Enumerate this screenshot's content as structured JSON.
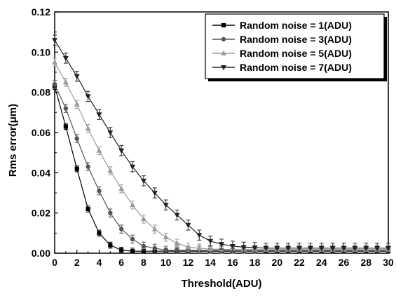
{
  "chart_data": {
    "type": "line",
    "title": "",
    "xlabel": "Threshold(ADU)",
    "ylabel": "Rms error(μm)",
    "xlim": [
      0,
      30
    ],
    "ylim": [
      0,
      0.12
    ],
    "x_ticks": [
      0,
      2,
      4,
      6,
      8,
      10,
      12,
      14,
      16,
      18,
      20,
      22,
      24,
      26,
      28,
      30
    ],
    "y_ticks": [
      "0.00",
      "0.02",
      "0.04",
      "0.06",
      "0.08",
      "0.10",
      "0.12"
    ],
    "grid": false,
    "legend_position": "top-right",
    "x": [
      0,
      1,
      2,
      3,
      4,
      5,
      6,
      7,
      8,
      9,
      10,
      11,
      12,
      13,
      14,
      15,
      16,
      17,
      18,
      19,
      20,
      21,
      22,
      23,
      24,
      25,
      26,
      27,
      28,
      29,
      30
    ],
    "series": [
      {
        "name": "Random noise = 1(ADU)",
        "color": "#000000",
        "marker": "square",
        "values": [
          0.083,
          0.063,
          0.042,
          0.022,
          0.01,
          0.004,
          0.0015,
          0.001,
          0.001,
          0.001,
          0.001,
          0.001,
          0.001,
          0.001,
          0.001,
          0.001,
          0.001,
          0.001,
          0.001,
          0.001,
          0.001,
          0.001,
          0.001,
          0.001,
          0.001,
          0.001,
          0.001,
          0.001,
          0.001,
          0.001,
          0.001
        ],
        "error": 0.0015
      },
      {
        "name": "Random noise = 3(ADU)",
        "color": "#555555",
        "marker": "circle",
        "values": [
          0.084,
          0.072,
          0.057,
          0.043,
          0.031,
          0.02,
          0.012,
          0.007,
          0.0035,
          0.0025,
          0.0015,
          0.0015,
          0.0015,
          0.0015,
          0.0015,
          0.0015,
          0.0015,
          0.0015,
          0.0015,
          0.0015,
          0.0015,
          0.0015,
          0.0015,
          0.0015,
          0.0015,
          0.0015,
          0.0015,
          0.0015,
          0.0015,
          0.0015,
          0.0015
        ],
        "error": 0.002
      },
      {
        "name": "Random noise = 5(ADU)",
        "color": "#9a9a9a",
        "marker": "triangle-up",
        "values": [
          0.095,
          0.085,
          0.074,
          0.062,
          0.051,
          0.041,
          0.032,
          0.024,
          0.017,
          0.012,
          0.008,
          0.005,
          0.003,
          0.0025,
          0.002,
          0.002,
          0.0018,
          0.0018,
          0.0018,
          0.0018,
          0.0018,
          0.0018,
          0.0018,
          0.0018,
          0.0018,
          0.0018,
          0.0018,
          0.0018,
          0.0018,
          0.0018,
          0.0018
        ],
        "error": 0.002
      },
      {
        "name": "Random noise = 7(ADU)",
        "color": "#222222",
        "marker": "triangle-down",
        "values": [
          0.106,
          0.097,
          0.088,
          0.078,
          0.069,
          0.06,
          0.051,
          0.043,
          0.036,
          0.03,
          0.024,
          0.019,
          0.014,
          0.009,
          0.006,
          0.0045,
          0.0035,
          0.003,
          0.0028,
          0.0025,
          0.0025,
          0.0025,
          0.0025,
          0.0025,
          0.0025,
          0.0025,
          0.0025,
          0.0025,
          0.0025,
          0.0025,
          0.0025
        ],
        "error": 0.0025
      }
    ]
  }
}
